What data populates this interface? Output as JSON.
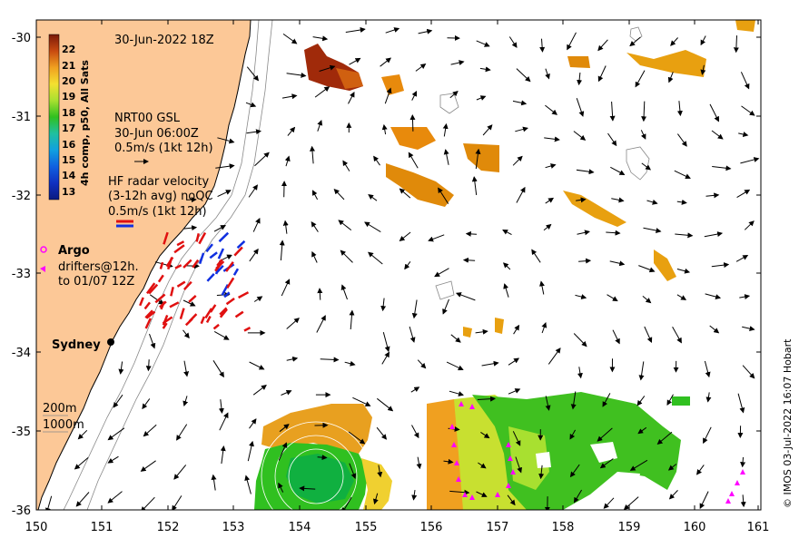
{
  "map": {
    "date_label": "30-Jun-2022 18Z",
    "colorbar_title": "4h comp, p50, All Sats",
    "colorbar_ticks": [
      "22",
      "21",
      "20",
      "19",
      "18",
      "17",
      "16",
      "15",
      "14",
      "13"
    ],
    "legend": {
      "nrt_lines": [
        "NRT00 GSL",
        "30-Jun 06:00Z",
        "0.5m/s (1kt 12h)"
      ],
      "hf_lines": [
        "HF radar velocity",
        "(3-12h avg) noQC",
        "0.5m/s (1kt 12h)"
      ],
      "argo": "Argo",
      "drifter_lines": [
        "drifters@12h.",
        "to 01/07 12Z"
      ]
    },
    "place_label": "Sydney",
    "depth_labels": [
      "200m",
      "1000m"
    ],
    "credit": "© IMOS 03-Jul-2022 16:07 Hobart",
    "lat_labels": [
      "-30",
      "-31",
      "-32",
      "-33",
      "-34",
      "-35",
      "-36"
    ],
    "lon_labels": [
      "150",
      "151",
      "152",
      "153",
      "154",
      "155",
      "156",
      "157",
      "158",
      "159",
      "160",
      "161"
    ],
    "colors": {
      "land": "#fcc897",
      "warm": "#e08a0a",
      "green": "#22c01a",
      "blue_arrow": "#1030e0",
      "red_arrow": "#e01010",
      "magenta": "#ff00ff"
    }
  }
}
